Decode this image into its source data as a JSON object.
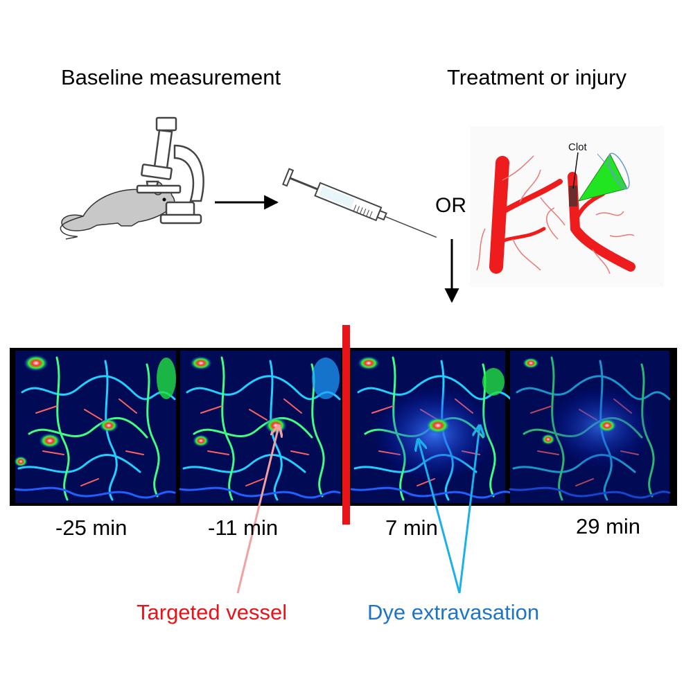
{
  "titles": {
    "baseline": "Baseline measurement",
    "treatment": "Treatment or injury"
  },
  "or_label": "OR",
  "clot_label": "Clot",
  "time_labels": [
    "-25 min",
    "-11 min",
    "7 min",
    "29 min"
  ],
  "annotations": {
    "targeted_vessel": "Targeted vessel",
    "dye_extravasation": "Dye extravasation"
  },
  "colors": {
    "targeted_vessel": "#e8141a",
    "targeted_arrow": "#f4a0a0",
    "dye": "#1f74c7",
    "dye_arrow": "#1ab0e8",
    "separator": "#e8141a",
    "vessel_red": "#ee1c1c",
    "cone_green": "#22e522"
  },
  "icons": [
    "mouse-icon",
    "microscope-icon",
    "syringe-icon",
    "laser-cone-icon"
  ]
}
